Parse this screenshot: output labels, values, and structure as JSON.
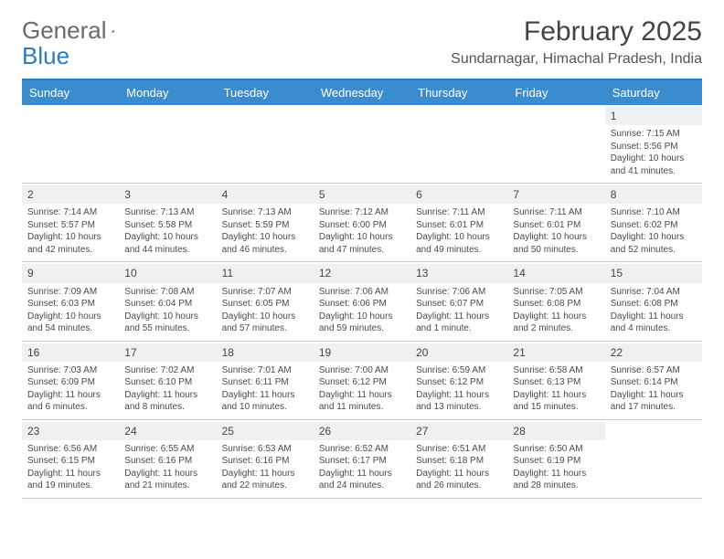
{
  "logo": {
    "part1": "General",
    "part2": "Blue"
  },
  "title": "February 2025",
  "location": "Sundarnagar, Himachal Pradesh, India",
  "colors": {
    "header_bg": "#3b8bcf",
    "header_border": "#2b7bbf",
    "daynum_bg": "#eef0f1",
    "row_border": "#c8c8c8",
    "text": "#4a4a4a"
  },
  "weekdays": [
    "Sunday",
    "Monday",
    "Tuesday",
    "Wednesday",
    "Thursday",
    "Friday",
    "Saturday"
  ],
  "weeks": [
    [
      {
        "n": "",
        "sr": "",
        "ss": "",
        "dl": "",
        "empty": true
      },
      {
        "n": "",
        "sr": "",
        "ss": "",
        "dl": "",
        "empty": true
      },
      {
        "n": "",
        "sr": "",
        "ss": "",
        "dl": "",
        "empty": true
      },
      {
        "n": "",
        "sr": "",
        "ss": "",
        "dl": "",
        "empty": true
      },
      {
        "n": "",
        "sr": "",
        "ss": "",
        "dl": "",
        "empty": true
      },
      {
        "n": "",
        "sr": "",
        "ss": "",
        "dl": "",
        "empty": true
      },
      {
        "n": "1",
        "sr": "Sunrise: 7:15 AM",
        "ss": "Sunset: 5:56 PM",
        "dl": "Daylight: 10 hours and 41 minutes."
      }
    ],
    [
      {
        "n": "2",
        "sr": "Sunrise: 7:14 AM",
        "ss": "Sunset: 5:57 PM",
        "dl": "Daylight: 10 hours and 42 minutes."
      },
      {
        "n": "3",
        "sr": "Sunrise: 7:13 AM",
        "ss": "Sunset: 5:58 PM",
        "dl": "Daylight: 10 hours and 44 minutes."
      },
      {
        "n": "4",
        "sr": "Sunrise: 7:13 AM",
        "ss": "Sunset: 5:59 PM",
        "dl": "Daylight: 10 hours and 46 minutes."
      },
      {
        "n": "5",
        "sr": "Sunrise: 7:12 AM",
        "ss": "Sunset: 6:00 PM",
        "dl": "Daylight: 10 hours and 47 minutes."
      },
      {
        "n": "6",
        "sr": "Sunrise: 7:11 AM",
        "ss": "Sunset: 6:01 PM",
        "dl": "Daylight: 10 hours and 49 minutes."
      },
      {
        "n": "7",
        "sr": "Sunrise: 7:11 AM",
        "ss": "Sunset: 6:01 PM",
        "dl": "Daylight: 10 hours and 50 minutes."
      },
      {
        "n": "8",
        "sr": "Sunrise: 7:10 AM",
        "ss": "Sunset: 6:02 PM",
        "dl": "Daylight: 10 hours and 52 minutes."
      }
    ],
    [
      {
        "n": "9",
        "sr": "Sunrise: 7:09 AM",
        "ss": "Sunset: 6:03 PM",
        "dl": "Daylight: 10 hours and 54 minutes."
      },
      {
        "n": "10",
        "sr": "Sunrise: 7:08 AM",
        "ss": "Sunset: 6:04 PM",
        "dl": "Daylight: 10 hours and 55 minutes."
      },
      {
        "n": "11",
        "sr": "Sunrise: 7:07 AM",
        "ss": "Sunset: 6:05 PM",
        "dl": "Daylight: 10 hours and 57 minutes."
      },
      {
        "n": "12",
        "sr": "Sunrise: 7:06 AM",
        "ss": "Sunset: 6:06 PM",
        "dl": "Daylight: 10 hours and 59 minutes."
      },
      {
        "n": "13",
        "sr": "Sunrise: 7:06 AM",
        "ss": "Sunset: 6:07 PM",
        "dl": "Daylight: 11 hours and 1 minute."
      },
      {
        "n": "14",
        "sr": "Sunrise: 7:05 AM",
        "ss": "Sunset: 6:08 PM",
        "dl": "Daylight: 11 hours and 2 minutes."
      },
      {
        "n": "15",
        "sr": "Sunrise: 7:04 AM",
        "ss": "Sunset: 6:08 PM",
        "dl": "Daylight: 11 hours and 4 minutes."
      }
    ],
    [
      {
        "n": "16",
        "sr": "Sunrise: 7:03 AM",
        "ss": "Sunset: 6:09 PM",
        "dl": "Daylight: 11 hours and 6 minutes."
      },
      {
        "n": "17",
        "sr": "Sunrise: 7:02 AM",
        "ss": "Sunset: 6:10 PM",
        "dl": "Daylight: 11 hours and 8 minutes."
      },
      {
        "n": "18",
        "sr": "Sunrise: 7:01 AM",
        "ss": "Sunset: 6:11 PM",
        "dl": "Daylight: 11 hours and 10 minutes."
      },
      {
        "n": "19",
        "sr": "Sunrise: 7:00 AM",
        "ss": "Sunset: 6:12 PM",
        "dl": "Daylight: 11 hours and 11 minutes."
      },
      {
        "n": "20",
        "sr": "Sunrise: 6:59 AM",
        "ss": "Sunset: 6:12 PM",
        "dl": "Daylight: 11 hours and 13 minutes."
      },
      {
        "n": "21",
        "sr": "Sunrise: 6:58 AM",
        "ss": "Sunset: 6:13 PM",
        "dl": "Daylight: 11 hours and 15 minutes."
      },
      {
        "n": "22",
        "sr": "Sunrise: 6:57 AM",
        "ss": "Sunset: 6:14 PM",
        "dl": "Daylight: 11 hours and 17 minutes."
      }
    ],
    [
      {
        "n": "23",
        "sr": "Sunrise: 6:56 AM",
        "ss": "Sunset: 6:15 PM",
        "dl": "Daylight: 11 hours and 19 minutes."
      },
      {
        "n": "24",
        "sr": "Sunrise: 6:55 AM",
        "ss": "Sunset: 6:16 PM",
        "dl": "Daylight: 11 hours and 21 minutes."
      },
      {
        "n": "25",
        "sr": "Sunrise: 6:53 AM",
        "ss": "Sunset: 6:16 PM",
        "dl": "Daylight: 11 hours and 22 minutes."
      },
      {
        "n": "26",
        "sr": "Sunrise: 6:52 AM",
        "ss": "Sunset: 6:17 PM",
        "dl": "Daylight: 11 hours and 24 minutes."
      },
      {
        "n": "27",
        "sr": "Sunrise: 6:51 AM",
        "ss": "Sunset: 6:18 PM",
        "dl": "Daylight: 11 hours and 26 minutes."
      },
      {
        "n": "28",
        "sr": "Sunrise: 6:50 AM",
        "ss": "Sunset: 6:19 PM",
        "dl": "Daylight: 11 hours and 28 minutes."
      },
      {
        "n": "",
        "sr": "",
        "ss": "",
        "dl": "",
        "empty": true
      }
    ]
  ]
}
